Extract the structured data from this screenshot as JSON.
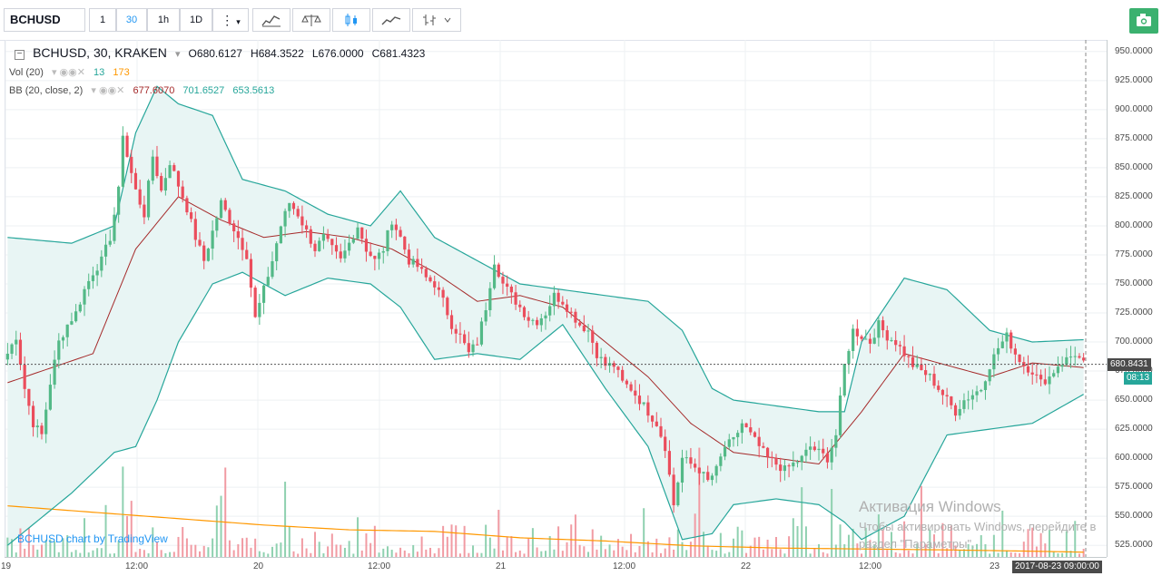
{
  "toolbar": {
    "symbol": "BCHUSD",
    "intervals": [
      "1",
      "30",
      "1h",
      "1D"
    ],
    "active_interval": "30",
    "more_label": "⋮",
    "icons": [
      "indicators-icon",
      "compare-icon",
      "candles-icon",
      "line-chart-icon",
      "bars-icon"
    ],
    "camera_icon": "camera-icon"
  },
  "legend": {
    "title": "BCHUSD, 30, KRAKEN",
    "o_label": "O",
    "o": "680.6127",
    "h_label": "H",
    "h": "684.3522",
    "l_label": "L",
    "l": "676.0000",
    "c_label": "C",
    "c": "681.4323",
    "vol_label": "Vol (20)",
    "vol_a": "13",
    "vol_b": "173",
    "bb_label": "BB (20, close, 2)",
    "bb_mid": "677.6070",
    "bb_up": "701.6527",
    "bb_low": "653.5613"
  },
  "price_axis": {
    "labels": [
      "950.0000",
      "925.0000",
      "900.0000",
      "875.0000",
      "850.0000",
      "825.0000",
      "800.0000",
      "775.0000",
      "750.0000",
      "725.0000",
      "700.0000",
      "675.0000",
      "650.0000",
      "625.0000",
      "600.0000",
      "575.0000",
      "550.0000",
      "525.0000"
    ],
    "current_price": "680.8431",
    "countdown": "08:13"
  },
  "time_axis": {
    "labels": [
      "19",
      "12:00",
      "20",
      "12:00",
      "21",
      "12:00",
      "22",
      "12:00",
      "23"
    ],
    "cursor_time": "2017-08-23 09:00:00"
  },
  "credit": "BCHUSD chart by TradingView",
  "watermark": {
    "title": "Активация Windows",
    "line1": "Чтобы активировать Windows, перейдите в",
    "line2": "раздел \"Параметры\"."
  },
  "colors": {
    "up": "#53b987",
    "down": "#eb4d5c",
    "bb_fill": "#e8f5f4",
    "bb_band": "#26a69a",
    "basis": "#a52a2a",
    "vol_ma": "#ff9800"
  },
  "chart_data": {
    "type": "candlestick",
    "interval": "30",
    "y_range": [
      515,
      960
    ],
    "time_ticks": [
      "19",
      "12:00",
      "20",
      "12:00",
      "21",
      "12:00",
      "22",
      "12:00",
      "23"
    ],
    "anchors": [
      [
        0,
        690
      ],
      [
        2,
        705
      ],
      [
        4,
        660
      ],
      [
        6,
        630
      ],
      [
        8,
        620
      ],
      [
        10,
        665
      ],
      [
        12,
        700
      ],
      [
        14,
        715
      ],
      [
        16,
        725
      ],
      [
        18,
        745
      ],
      [
        20,
        760
      ],
      [
        22,
        770
      ],
      [
        24,
        790
      ],
      [
        26,
        830
      ],
      [
        27,
        880
      ],
      [
        28,
        860
      ],
      [
        30,
        830
      ],
      [
        32,
        810
      ],
      [
        34,
        860
      ],
      [
        36,
        830
      ],
      [
        38,
        855
      ],
      [
        40,
        835
      ],
      [
        42,
        815
      ],
      [
        44,
        790
      ],
      [
        46,
        770
      ],
      [
        48,
        795
      ],
      [
        50,
        820
      ],
      [
        52,
        805
      ],
      [
        54,
        790
      ],
      [
        56,
        775
      ],
      [
        58,
        720
      ],
      [
        60,
        745
      ],
      [
        62,
        770
      ],
      [
        64,
        800
      ],
      [
        66,
        820
      ],
      [
        68,
        810
      ],
      [
        70,
        795
      ],
      [
        72,
        780
      ],
      [
        74,
        790
      ],
      [
        76,
        780
      ],
      [
        78,
        770
      ],
      [
        80,
        785
      ],
      [
        82,
        800
      ],
      [
        84,
        780
      ],
      [
        86,
        770
      ],
      [
        88,
        780
      ],
      [
        90,
        805
      ],
      [
        92,
        790
      ],
      [
        94,
        770
      ],
      [
        96,
        765
      ],
      [
        98,
        755
      ],
      [
        100,
        750
      ],
      [
        102,
        735
      ],
      [
        104,
        715
      ],
      [
        106,
        705
      ],
      [
        108,
        690
      ],
      [
        110,
        700
      ],
      [
        112,
        730
      ],
      [
        114,
        770
      ],
      [
        116,
        750
      ],
      [
        118,
        740
      ],
      [
        120,
        730
      ],
      [
        122,
        720
      ],
      [
        124,
        718
      ],
      [
        126,
        725
      ],
      [
        128,
        740
      ],
      [
        130,
        735
      ],
      [
        132,
        725
      ],
      [
        134,
        715
      ],
      [
        136,
        710
      ],
      [
        138,
        690
      ],
      [
        140,
        680
      ],
      [
        142,
        680
      ],
      [
        144,
        665
      ],
      [
        146,
        660
      ],
      [
        148,
        650
      ],
      [
        150,
        640
      ],
      [
        152,
        630
      ],
      [
        154,
        610
      ],
      [
        156,
        560
      ],
      [
        158,
        600
      ],
      [
        160,
        595
      ],
      [
        162,
        590
      ],
      [
        164,
        580
      ],
      [
        166,
        590
      ],
      [
        168,
        610
      ],
      [
        170,
        615
      ],
      [
        172,
        630
      ],
      [
        174,
        620
      ],
      [
        176,
        610
      ],
      [
        178,
        600
      ],
      [
        180,
        595
      ],
      [
        182,
        590
      ],
      [
        184,
        595
      ],
      [
        186,
        600
      ],
      [
        188,
        610
      ],
      [
        190,
        605
      ],
      [
        192,
        600
      ],
      [
        194,
        620
      ],
      [
        196,
        680
      ],
      [
        198,
        710
      ],
      [
        200,
        705
      ],
      [
        202,
        700
      ],
      [
        204,
        715
      ],
      [
        206,
        705
      ],
      [
        208,
        700
      ],
      [
        210,
        690
      ],
      [
        212,
        680
      ],
      [
        214,
        675
      ],
      [
        216,
        670
      ],
      [
        218,
        660
      ],
      [
        220,
        650
      ],
      [
        222,
        640
      ],
      [
        224,
        650
      ],
      [
        226,
        655
      ],
      [
        228,
        660
      ],
      [
        230,
        680
      ],
      [
        232,
        695
      ],
      [
        234,
        705
      ],
      [
        236,
        690
      ],
      [
        238,
        680
      ],
      [
        240,
        675
      ],
      [
        242,
        665
      ],
      [
        244,
        670
      ],
      [
        246,
        680
      ],
      [
        248,
        685
      ],
      [
        250,
        690
      ],
      [
        252,
        681
      ]
    ],
    "candle_count": 253,
    "basis": [
      [
        0,
        665
      ],
      [
        20,
        690
      ],
      [
        30,
        780
      ],
      [
        40,
        825
      ],
      [
        50,
        805
      ],
      [
        60,
        790
      ],
      [
        70,
        795
      ],
      [
        80,
        790
      ],
      [
        90,
        780
      ],
      [
        100,
        760
      ],
      [
        110,
        735
      ],
      [
        120,
        740
      ],
      [
        130,
        730
      ],
      [
        140,
        700
      ],
      [
        150,
        670
      ],
      [
        160,
        630
      ],
      [
        170,
        605
      ],
      [
        180,
        600
      ],
      [
        190,
        595
      ],
      [
        200,
        640
      ],
      [
        210,
        690
      ],
      [
        220,
        680
      ],
      [
        230,
        670
      ],
      [
        240,
        682
      ],
      [
        252,
        678
      ]
    ],
    "upper": [
      [
        0,
        790
      ],
      [
        15,
        785
      ],
      [
        25,
        800
      ],
      [
        30,
        880
      ],
      [
        35,
        920
      ],
      [
        40,
        905
      ],
      [
        48,
        895
      ],
      [
        55,
        840
      ],
      [
        65,
        830
      ],
      [
        75,
        810
      ],
      [
        85,
        800
      ],
      [
        92,
        830
      ],
      [
        100,
        790
      ],
      [
        110,
        770
      ],
      [
        120,
        750
      ],
      [
        130,
        745
      ],
      [
        140,
        740
      ],
      [
        150,
        735
      ],
      [
        158,
        710
      ],
      [
        165,
        660
      ],
      [
        170,
        650
      ],
      [
        180,
        645
      ],
      [
        190,
        640
      ],
      [
        196,
        640
      ],
      [
        200,
        700
      ],
      [
        210,
        755
      ],
      [
        220,
        745
      ],
      [
        230,
        710
      ],
      [
        240,
        700
      ],
      [
        252,
        702
      ]
    ],
    "lower": [
      [
        0,
        525
      ],
      [
        15,
        570
      ],
      [
        25,
        605
      ],
      [
        30,
        610
      ],
      [
        35,
        650
      ],
      [
        40,
        700
      ],
      [
        48,
        750
      ],
      [
        55,
        760
      ],
      [
        65,
        740
      ],
      [
        75,
        755
      ],
      [
        85,
        750
      ],
      [
        92,
        730
      ],
      [
        100,
        685
      ],
      [
        110,
        690
      ],
      [
        120,
        685
      ],
      [
        130,
        715
      ],
      [
        140,
        660
      ],
      [
        150,
        610
      ],
      [
        158,
        530
      ],
      [
        165,
        535
      ],
      [
        170,
        560
      ],
      [
        180,
        565
      ],
      [
        190,
        560
      ],
      [
        196,
        545
      ],
      [
        200,
        530
      ],
      [
        210,
        550
      ],
      [
        220,
        620
      ],
      [
        230,
        625
      ],
      [
        240,
        630
      ],
      [
        252,
        655
      ]
    ],
    "volume_scale_max": 1000,
    "vol_ma": [
      [
        0,
        160
      ],
      [
        20,
        140
      ],
      [
        40,
        120
      ],
      [
        60,
        100
      ],
      [
        80,
        85
      ],
      [
        100,
        80
      ],
      [
        120,
        60
      ],
      [
        140,
        50
      ],
      [
        160,
        35
      ],
      [
        180,
        28
      ],
      [
        200,
        25
      ],
      [
        220,
        22
      ],
      [
        240,
        18
      ],
      [
        252,
        15
      ]
    ],
    "last_price": 680.8431,
    "last_ohlc": {
      "o": 680.6127,
      "h": 684.3522,
      "l": 676.0,
      "c": 681.4323
    }
  }
}
